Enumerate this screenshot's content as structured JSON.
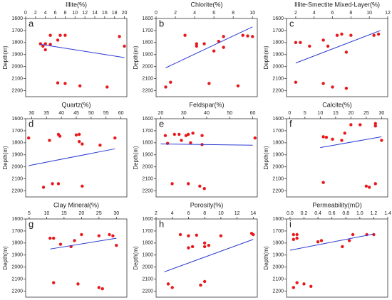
{
  "chart_data": [
    {
      "type": "scatter",
      "title": "Illite(%)",
      "annotation": "a",
      "ylabel": "Depth(m)",
      "color": "#e8191b",
      "line_color": "#2b3bd1",
      "xlim": [
        0,
        20.5
      ],
      "xticks": [
        0,
        2,
        4,
        6,
        8,
        10,
        12,
        14,
        16,
        18,
        20
      ],
      "ylim": [
        1600,
        2250
      ],
      "yticks": [
        1600,
        1700,
        1800,
        1900,
        2000,
        2100,
        2200
      ],
      "y_inverted": true,
      "x": [
        5,
        7,
        8,
        19,
        3,
        4,
        5,
        3.5,
        4,
        6.5,
        20,
        6.5,
        8,
        11,
        16.5
      ],
      "y": [
        1740,
        1740,
        1740,
        1750,
        1810,
        1810,
        1815,
        1830,
        1860,
        1780,
        1830,
        2135,
        2140,
        2160,
        2170
      ],
      "trend_line": {
        "x": [
          3,
          20
        ],
        "y": [
          1815,
          1925
        ]
      }
    },
    {
      "type": "scatter",
      "title": "Chlorite(%)",
      "annotation": "b",
      "ylabel": "Depth(m)",
      "color": "#e8191b",
      "line_color": "#2b3bd1",
      "xlim": [
        0,
        10.5
      ],
      "xticks": [
        0,
        2,
        4,
        6,
        8,
        10
      ],
      "ylim": [
        1600,
        2250
      ],
      "yticks": [
        1600,
        1700,
        1800,
        1900,
        2000,
        2100,
        2200
      ],
      "y_inverted": true,
      "x": [
        3,
        7,
        9,
        9.5,
        10,
        4.2,
        4.2,
        5,
        6.5,
        7,
        6,
        1,
        1.5,
        5.5,
        8.5
      ],
      "y": [
        1740,
        1750,
        1740,
        1745,
        1750,
        1810,
        1830,
        1810,
        1790,
        1840,
        1870,
        2170,
        2130,
        2140,
        2160
      ],
      "trend_line": {
        "x": [
          1,
          10
        ],
        "y": [
          2010,
          1670
        ]
      }
    },
    {
      "type": "scatter",
      "title": "Illite-Smectite Mixed-Layer(%)",
      "annotation": "c",
      "ylabel": "Depth(m)",
      "color": "#e8191b",
      "line_color": "#2b3bd1",
      "xlim": [
        1,
        12
      ],
      "xticks": [
        2,
        4,
        6,
        8,
        10,
        12
      ],
      "ylim": [
        1600,
        2250
      ],
      "yticks": [
        1600,
        1700,
        1800,
        1900,
        2000,
        2100,
        2200
      ],
      "y_inverted": true,
      "x": [
        2,
        2.5,
        3.5,
        5,
        6.5,
        7,
        8,
        10.5,
        11,
        5.5,
        7.5,
        2,
        5,
        6,
        7.5
      ],
      "y": [
        1800,
        1800,
        1830,
        1780,
        1740,
        1730,
        1740,
        1740,
        1730,
        1830,
        1880,
        2130,
        2140,
        2170,
        2180
      ],
      "trend_line": {
        "x": [
          2,
          11.2
        ],
        "y": [
          1970,
          1700
        ]
      }
    },
    {
      "type": "scatter",
      "title": "Quartz(%)",
      "annotation": "d",
      "ylabel": "Depth(m)",
      "color": "#e8191b",
      "line_color": "#2b3bd1",
      "xlim": [
        28,
        62
      ],
      "xticks": [
        30,
        35,
        40,
        45,
        50,
        55,
        60
      ],
      "ylim": [
        1600,
        2250
      ],
      "yticks": [
        1600,
        1700,
        1800,
        1900,
        2000,
        2100,
        2200
      ],
      "y_inverted": true,
      "x": [
        29,
        39,
        39.5,
        45,
        46,
        36,
        46,
        47,
        53,
        58,
        37,
        39,
        47,
        34
      ],
      "y": [
        1760,
        1730,
        1745,
        1735,
        1730,
        1780,
        1790,
        1810,
        1820,
        1760,
        2140,
        2140,
        2160,
        2170
      ],
      "trend_line": {
        "x": [
          29,
          58
        ],
        "y": [
          1990,
          1850
        ]
      }
    },
    {
      "type": "scatter",
      "title": "Feldspar(%)",
      "annotation": "e",
      "ylabel": "Depth(m)",
      "color": "#e8191b",
      "line_color": "#2b3bd1",
      "xlim": [
        18,
        62
      ],
      "xticks": [
        20,
        30,
        40,
        50,
        60
      ],
      "ylim": [
        1600,
        2250
      ],
      "yticks": [
        1600,
        1700,
        1800,
        1900,
        2000,
        2100,
        2200
      ],
      "y_inverted": true,
      "x": [
        22,
        26,
        28,
        31,
        32,
        34,
        38,
        29,
        33,
        38,
        23,
        61,
        25,
        32,
        37,
        39
      ],
      "y": [
        1740,
        1730,
        1730,
        1740,
        1730,
        1720,
        1740,
        1780,
        1800,
        1815,
        1805,
        1760,
        2140,
        2140,
        2160,
        2180
      ],
      "trend_line": {
        "x": [
          20,
          60
        ],
        "y": [
          1810,
          1820
        ]
      }
    },
    {
      "type": "scatter",
      "title": "Calcite(%)",
      "annotation": "f",
      "ylabel": "Depth(m)",
      "color": "#e8191b",
      "line_color": "#2b3bd1",
      "xlim": [
        -1,
        32
      ],
      "xticks": [
        0,
        5,
        10,
        15,
        20,
        25,
        30
      ],
      "ylim": [
        1600,
        2250
      ],
      "yticks": [
        1600,
        1700,
        1800,
        1900,
        2000,
        2100,
        2200
      ],
      "y_inverted": true,
      "x": [
        20,
        23,
        28,
        28,
        18,
        11,
        12,
        14,
        17,
        30,
        11,
        25,
        26,
        28
      ],
      "y": [
        1650,
        1650,
        1640,
        1660,
        1720,
        1750,
        1755,
        1770,
        1780,
        1780,
        2130,
        2160,
        2170,
        2140
      ],
      "trend_line": {
        "x": [
          10,
          30
        ],
        "y": [
          1840,
          1750
        ]
      }
    },
    {
      "type": "scatter",
      "title": "Clay Mineral(%)",
      "annotation": "g",
      "ylabel": "Depth(m)",
      "color": "#e8191b",
      "line_color": "#2b3bd1",
      "xlim": [
        4,
        33
      ],
      "xticks": [
        5,
        10,
        15,
        20,
        25,
        30
      ],
      "ylim": [
        1600,
        2250
      ],
      "yticks": [
        1600,
        1700,
        1800,
        1900,
        2000,
        2100,
        2200
      ],
      "y_inverted": true,
      "x": [
        11,
        12,
        20,
        25,
        28,
        29,
        18,
        14,
        17,
        30,
        12,
        19,
        25,
        26
      ],
      "y": [
        1760,
        1760,
        1730,
        1740,
        1730,
        1740,
        1780,
        1810,
        1830,
        1820,
        2130,
        2140,
        2170,
        2180
      ],
      "trend_line": {
        "x": [
          11,
          30
        ],
        "y": [
          1850,
          1760
        ]
      }
    },
    {
      "type": "scatter",
      "title": "Porosity(%)",
      "annotation": "h",
      "ylabel": "Depth(m)",
      "color": "#e8191b",
      "line_color": "#2b3bd1",
      "xlim": [
        2,
        14.5
      ],
      "xticks": [
        2,
        4,
        6,
        8,
        10,
        12,
        14
      ],
      "ylim": [
        1600,
        2250
      ],
      "yticks": [
        1600,
        1700,
        1800,
        1900,
        2000,
        2100,
        2200
      ],
      "y_inverted": true,
      "x": [
        5,
        6,
        7,
        14,
        13.8,
        8,
        8,
        8.5,
        6,
        6.5,
        3.5,
        4,
        7.5,
        8,
        10
      ],
      "y": [
        1730,
        1740,
        1735,
        1730,
        1720,
        1800,
        1830,
        1820,
        1840,
        1830,
        2140,
        2170,
        2150,
        2120,
        1740
      ],
      "trend_line": {
        "x": [
          3,
          14
        ],
        "y": [
          2040,
          1770
        ]
      }
    },
    {
      "type": "scatter",
      "title": "Permeability(mD)",
      "annotation": "i",
      "ylabel": "Depth(m)",
      "color": "#e8191b",
      "line_color": "#2b3bd1",
      "xlim": [
        -0.05,
        1.4
      ],
      "xticks": [
        {
          "value": 0,
          "label": "0.0"
        },
        0.2,
        0.4,
        0.6,
        0.8,
        {
          "value": 1,
          "label": "1.0"
        },
        1.2,
        1.4
      ],
      "ylim": [
        1600,
        2250
      ],
      "yticks": [
        1600,
        1700,
        1800,
        1900,
        2000,
        2100,
        2200
      ],
      "y_inverted": true,
      "x": [
        0.05,
        0.1,
        0.05,
        0.1,
        0.4,
        0.45,
        0.75,
        0.9,
        1.1,
        1.2,
        0.85,
        0.05,
        0.1,
        0.2,
        0.3
      ],
      "y": [
        1730,
        1730,
        1770,
        1760,
        1790,
        1780,
        1830,
        1730,
        1730,
        1730,
        1780,
        2170,
        2130,
        2140,
        2160
      ],
      "trend_line": {
        "x": [
          0,
          1.2
        ],
        "y": [
          1860,
          1725
        ]
      }
    }
  ]
}
